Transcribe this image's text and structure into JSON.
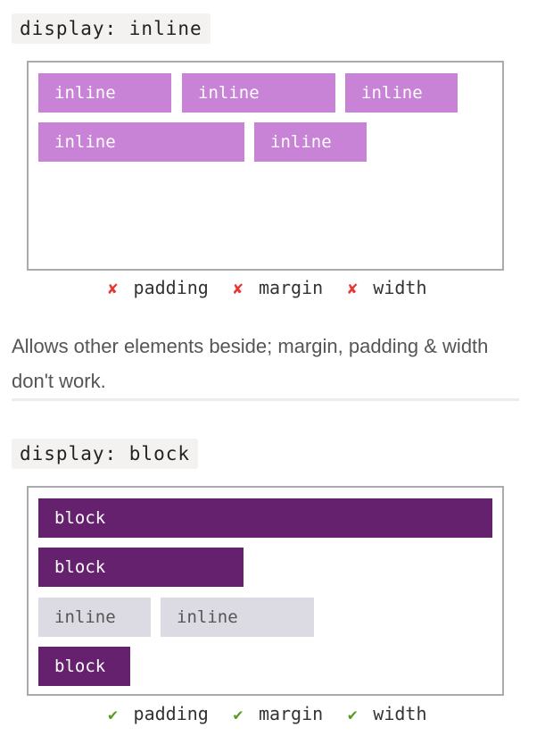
{
  "inline_section": {
    "code_label": "display: inline",
    "chips": [
      "inline",
      "inline",
      "inline",
      "inline",
      "inline"
    ],
    "legend": [
      {
        "mark": "✘",
        "label": "padding"
      },
      {
        "mark": "✘",
        "label": "margin"
      },
      {
        "mark": "✘",
        "label": "width"
      }
    ],
    "description": "Allows other elements beside; margin, padding & width don't work."
  },
  "block_section": {
    "code_label": "display: block",
    "chips": [
      "block",
      "block",
      "inline",
      "inline",
      "block"
    ],
    "legend": [
      {
        "mark": "✔",
        "label": "padding"
      },
      {
        "mark": "✔",
        "label": "margin"
      },
      {
        "mark": "✔",
        "label": "width"
      }
    ]
  },
  "colors": {
    "inline_chip": "#c883d6",
    "block_chip": "#65216e",
    "inline_gray_chip": "#dcdbe4",
    "cross_mark": "#e53935",
    "check_mark": "#5a9a1f"
  }
}
